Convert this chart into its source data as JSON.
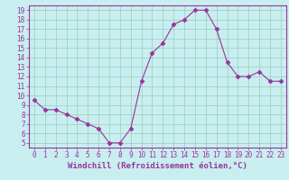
{
  "x": [
    0,
    1,
    2,
    3,
    4,
    5,
    6,
    7,
    8,
    9,
    10,
    11,
    12,
    13,
    14,
    15,
    16,
    17,
    18,
    19,
    20,
    21,
    22,
    23
  ],
  "y": [
    9.5,
    8.5,
    8.5,
    8.0,
    7.5,
    7.0,
    6.5,
    5.0,
    5.0,
    6.5,
    11.5,
    14.5,
    15.5,
    17.5,
    18.0,
    19.0,
    19.0,
    17.0,
    13.5,
    12.0,
    12.0,
    12.5,
    11.5,
    11.5
  ],
  "xlim": [
    -0.5,
    23.5
  ],
  "ylim": [
    4.5,
    19.5
  ],
  "yticks": [
    5,
    6,
    7,
    8,
    9,
    10,
    11,
    12,
    13,
    14,
    15,
    16,
    17,
    18,
    19
  ],
  "xticks": [
    0,
    1,
    2,
    3,
    4,
    5,
    6,
    7,
    8,
    9,
    10,
    11,
    12,
    13,
    14,
    15,
    16,
    17,
    18,
    19,
    20,
    21,
    22,
    23
  ],
  "xlabel": "Windchill (Refroidissement éolien,°C)",
  "line_color": "#993399",
  "marker": "D",
  "marker_size": 2.5,
  "bg_color": "#c8eef0",
  "grid_color": "#99ccbb",
  "tick_fontsize": 5.5,
  "label_fontsize": 6.5
}
